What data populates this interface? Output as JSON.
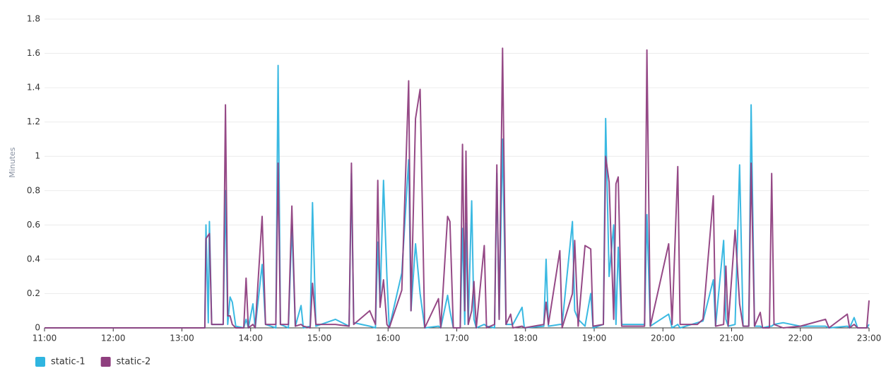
{
  "chart_data": {
    "type": "line",
    "y_label": "Minutes",
    "xlim": [
      "11:00",
      "23:00"
    ],
    "xticks": [
      "11:00",
      "12:00",
      "13:00",
      "14:00",
      "15:00",
      "16:00",
      "17:00",
      "18:00",
      "19:00",
      "20:00",
      "21:00",
      "22:00",
      "23:00"
    ],
    "ylim": [
      0,
      1.8
    ],
    "yticks": [
      0,
      0.2,
      0.4,
      0.6,
      0.8,
      1,
      1.2,
      1.4,
      1.6,
      1.8
    ],
    "grid": true,
    "legend": "bottom-left",
    "x": [
      "11:00",
      "13:20",
      "13:21",
      "13:23",
      "13:24",
      "13:26",
      "13:36",
      "13:38",
      "13:40",
      "13:42",
      "13:44",
      "13:47",
      "13:54",
      "13:56",
      "13:58",
      "14:02",
      "14:04",
      "14:10",
      "14:13",
      "14:22",
      "14:24",
      "14:26",
      "14:33",
      "14:36",
      "14:39",
      "14:44",
      "14:46",
      "14:52",
      "14:54",
      "14:57",
      "15:14",
      "15:26",
      "15:28",
      "15:30",
      "15:44",
      "15:49",
      "15:51",
      "15:53",
      "15:56",
      "15:59",
      "16:01",
      "16:12",
      "16:18",
      "16:20",
      "16:24",
      "16:28",
      "16:32",
      "16:44",
      "16:46",
      "16:52",
      "16:54",
      "16:57",
      "17:03",
      "17:05",
      "17:07",
      "17:08",
      "17:10",
      "17:13",
      "17:15",
      "17:17",
      "17:24",
      "17:26",
      "17:33",
      "17:35",
      "17:37",
      "17:40",
      "17:43",
      "17:47",
      "17:49",
      "17:57",
      "17:59",
      "18:16",
      "18:18",
      "18:20",
      "18:30",
      "18:32",
      "18:41",
      "18:43",
      "18:46",
      "18:52",
      "18:57",
      "18:59",
      "19:08",
      "19:10",
      "19:13",
      "19:17",
      "19:19",
      "19:21",
      "19:24",
      "19:44",
      "19:46",
      "19:49",
      "20:05",
      "20:08",
      "20:13",
      "20:15",
      "20:30",
      "20:35",
      "20:44",
      "20:46",
      "20:53",
      "20:55",
      "20:57",
      "21:03",
      "21:07",
      "21:10",
      "21:15",
      "21:17",
      "21:20",
      "21:25",
      "21:27",
      "21:33",
      "21:35",
      "21:37",
      "21:45",
      "22:00",
      "22:22",
      "22:25",
      "22:41",
      "22:43",
      "22:47",
      "22:50",
      "22:58",
      "23:00"
    ],
    "series": [
      {
        "name": "static-1",
        "color": "#2fb5e0",
        "values": [
          0,
          0,
          0.6,
          0.03,
          0.62,
          0.02,
          0.02,
          0.8,
          0.02,
          0.18,
          0.15,
          0.01,
          0,
          0.05,
          0,
          0.14,
          0,
          0.37,
          0.02,
          0,
          1.53,
          0.02,
          0,
          0.6,
          0.01,
          0.13,
          0,
          0.01,
          0.73,
          0.01,
          0.05,
          0.01,
          0.9,
          0.03,
          0.01,
          0,
          0.5,
          0.15,
          0.86,
          0.3,
          0,
          0.32,
          0.98,
          0.1,
          0.49,
          0.2,
          0,
          0.01,
          0,
          0.19,
          0.1,
          0,
          0,
          0.58,
          0.02,
          0.61,
          0.02,
          0.74,
          0.05,
          0,
          0.02,
          0.01,
          0,
          0.9,
          0.05,
          1.1,
          0.02,
          0.02,
          0.02,
          0.12,
          0,
          0.01,
          0.4,
          0.01,
          0.02,
          0.02,
          0.62,
          0.1,
          0.05,
          0.01,
          0.2,
          0,
          0.02,
          1.22,
          0.3,
          0.6,
          0.02,
          0.47,
          0.02,
          0.02,
          0.66,
          0.01,
          0.08,
          0,
          0.02,
          0,
          0.03,
          0.04,
          0.28,
          0.01,
          0.51,
          0.05,
          0.01,
          0.02,
          0.95,
          0.01,
          0.01,
          1.3,
          0.01,
          0.01,
          0,
          0.01,
          0.01,
          0.02,
          0.03,
          0.01,
          0.01,
          0,
          0.01,
          0,
          0.06,
          0,
          0,
          0.02
        ]
      },
      {
        "name": "static-2",
        "color": "#8f3f7f",
        "values": [
          0,
          0,
          0.52,
          0.54,
          0.55,
          0.02,
          0.02,
          1.3,
          0.07,
          0.07,
          0.02,
          0,
          0,
          0.29,
          0,
          0.02,
          0,
          0.65,
          0.02,
          0.02,
          0.96,
          0.02,
          0.02,
          0.71,
          0.01,
          0.02,
          0.01,
          0,
          0.26,
          0.02,
          0.02,
          0.01,
          0.96,
          0.02,
          0.1,
          0.02,
          0.86,
          0.12,
          0.28,
          0.02,
          0,
          0.22,
          1.44,
          0.1,
          1.22,
          1.39,
          0,
          0.17,
          0,
          0.65,
          0.62,
          0,
          0,
          1.07,
          0.1,
          1.03,
          0.02,
          0.1,
          0.27,
          0,
          0.48,
          0,
          0.02,
          0.95,
          0.05,
          1.63,
          0.02,
          0.08,
          0,
          0.01,
          0,
          0.02,
          0.15,
          0.02,
          0.45,
          0,
          0.2,
          0.51,
          0.01,
          0.48,
          0.46,
          0.01,
          0.02,
          1,
          0.85,
          0.05,
          0.84,
          0.88,
          0.01,
          0.01,
          1.62,
          0.01,
          0.49,
          0.02,
          0.94,
          0.02,
          0.02,
          0.05,
          0.77,
          0.01,
          0.02,
          0.36,
          0.01,
          0.57,
          0.14,
          0.01,
          0.01,
          0.96,
          0.01,
          0.09,
          0,
          0,
          0.9,
          0.02,
          0,
          0.01,
          0.05,
          0,
          0.08,
          0,
          0.02,
          0,
          0,
          0.16
        ]
      }
    ]
  }
}
